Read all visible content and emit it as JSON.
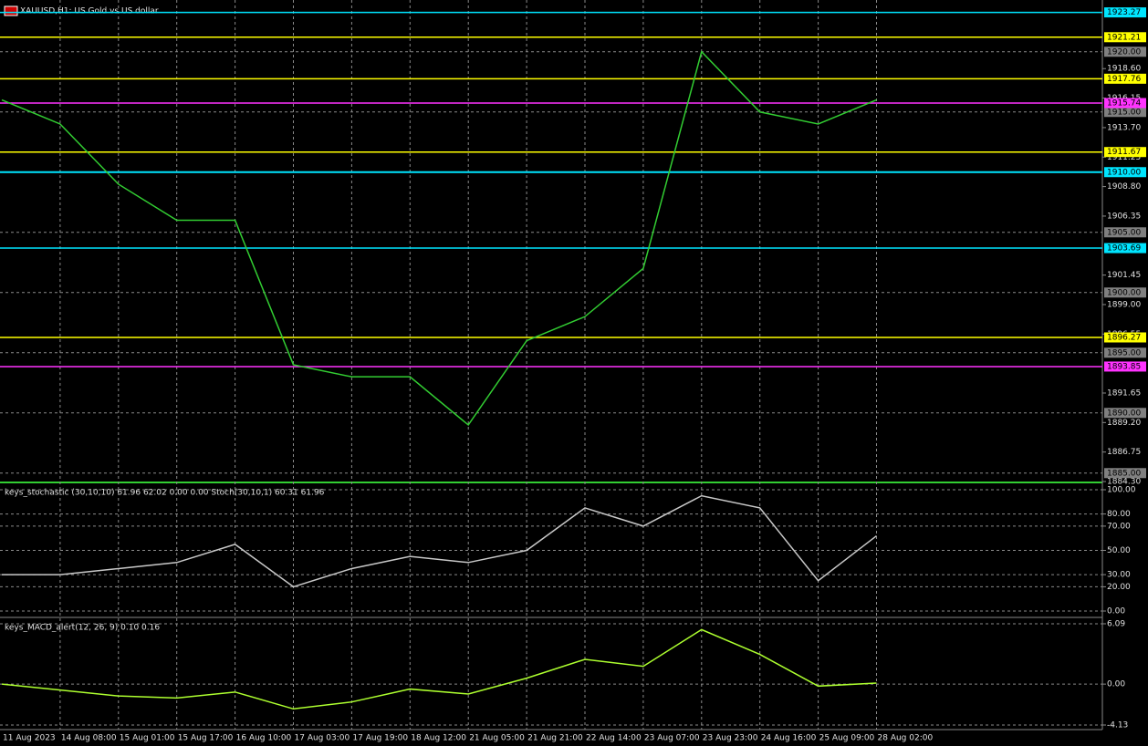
{
  "chart_data": [
    {
      "type": "line",
      "title": "XAUUSD,H1: US Gold vs US dollar",
      "categories": [
        "11 Aug 2023",
        "14 Aug 08:00",
        "15 Aug 01:00",
        "15 Aug 17:00",
        "16 Aug 10:00",
        "17 Aug 03:00",
        "17 Aug 19:00",
        "18 Aug 12:00",
        "21 Aug 05:00",
        "21 Aug 21:00",
        "22 Aug 14:00",
        "23 Aug 07:00",
        "23 Aug 23:00",
        "24 Aug 16:00",
        "25 Aug 09:00",
        "28 Aug 02:00"
      ],
      "series": [
        {
          "color": "#32cd32",
          "values": [
            1916,
            1914,
            1909,
            1906,
            1906,
            1894,
            1893,
            1893,
            1889,
            1896,
            1898,
            1902,
            1920,
            1915,
            1914,
            1916
          ]
        }
      ],
      "ylim": [
        1884.3,
        1924.3
      ],
      "yticks": [
        {
          "value": 1918.6,
          "label": "1918.60"
        },
        {
          "value": 1916.15,
          "label": "1916.15"
        },
        {
          "value": 1913.7,
          "label": "1913.70"
        },
        {
          "value": 1911.25,
          "label": "1911.25"
        },
        {
          "value": 1908.8,
          "label": "1908.80"
        },
        {
          "value": 1906.35,
          "label": "1906.35"
        },
        {
          "value": 1901.45,
          "label": "1901.45"
        },
        {
          "value": 1899,
          "label": "1899.00"
        },
        {
          "value": 1896.55,
          "label": "1896.55"
        },
        {
          "value": 1891.65,
          "label": "1891.65"
        },
        {
          "value": 1889.2,
          "label": "1889.20"
        },
        {
          "value": 1886.75,
          "label": "1886.75"
        },
        {
          "value": 1884.3,
          "label": "1884.30"
        }
      ],
      "price_marks": [
        {
          "value": 1920,
          "label": "1920.00"
        },
        {
          "value": 1915,
          "label": "1915.00"
        },
        {
          "value": 1905,
          "label": "1905.00"
        },
        {
          "value": 1900,
          "label": "1900.00"
        },
        {
          "value": 1895,
          "label": "1895.00"
        },
        {
          "value": 1890,
          "label": "1890.00"
        },
        {
          "value": 1885,
          "label": "1885.00"
        }
      ],
      "levels": [
        {
          "value": 1923.27,
          "color": "#00e5ff"
        },
        {
          "value": 1921.21,
          "color": "#ffff00"
        },
        {
          "value": 1917.76,
          "color": "#ffff00"
        },
        {
          "value": 1915.74,
          "color": "#ff33ff"
        },
        {
          "value": 1911.67,
          "color": "#ffff00"
        },
        {
          "value": 1910,
          "label": "1910.00",
          "color": "#00e5ff"
        },
        {
          "value": 1903.69,
          "color": "#00e5ff"
        },
        {
          "value": 1896.27,
          "color": "#ffff00"
        },
        {
          "value": 1893.85,
          "color": "#ff33ff"
        }
      ],
      "grid": true
    },
    {
      "type": "line",
      "title": "keys_stochastic (30,10,10) 61.96 62.02 0.00 0.00 Stoch(30,10,1) 60.31 61.96",
      "series": [
        {
          "color": "#c8c8c8",
          "values": [
            30,
            30,
            35,
            40,
            55,
            20,
            35,
            45,
            40,
            50,
            85,
            70,
            95,
            85,
            25,
            62
          ]
        }
      ],
      "ylim": [
        -4.5,
        104.5
      ],
      "yticks": [
        {
          "value": 100,
          "label": "100.00"
        },
        {
          "value": 80,
          "label": "80.00"
        },
        {
          "value": 70,
          "label": "70.00"
        },
        {
          "value": 50,
          "label": "50.00"
        },
        {
          "value": 30,
          "label": "30.00"
        },
        {
          "value": 20,
          "label": "20.00"
        },
        {
          "value": 0,
          "label": "0.00"
        }
      ],
      "grid": true
    },
    {
      "type": "line",
      "title": "keys_MACD_alert(12, 26, 9) 0.10 0.16",
      "series": [
        {
          "color": "#adff2f",
          "values": [
            0,
            -0.6,
            -1.2,
            -1.4,
            -0.8,
            -2.5,
            -1.8,
            -0.5,
            -1.0,
            0.6,
            2.5,
            1.8,
            5.5,
            3.0,
            -0.2,
            0.1
          ]
        }
      ],
      "ylim": [
        -4.59,
        6.64
      ],
      "yticks": [
        6.09,
        {
          "value": 0,
          "label": "0.00"
        },
        -4.13
      ],
      "grid": true
    }
  ]
}
